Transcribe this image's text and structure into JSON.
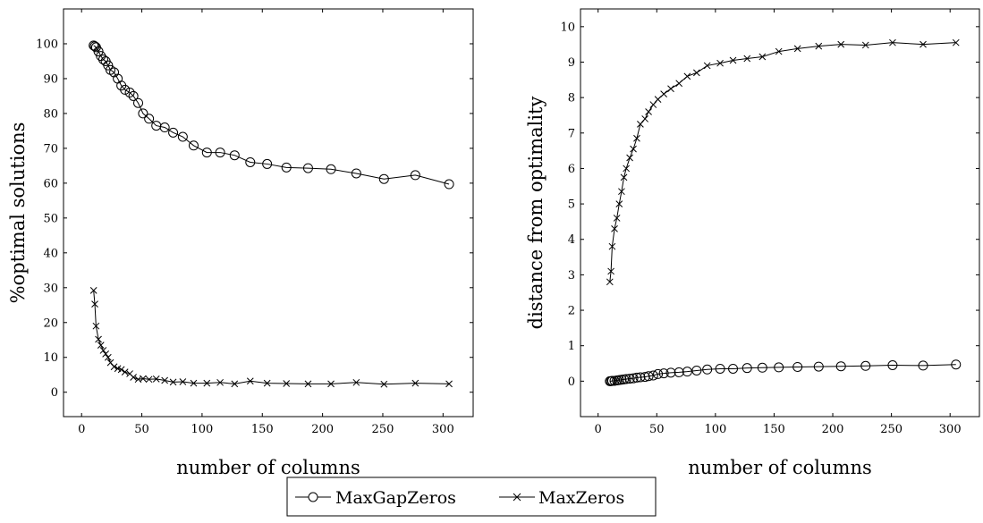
{
  "chart_data": [
    {
      "type": "line",
      "xlabel": "number of columns",
      "ylabel": "%optimal solutions",
      "xlim": [
        -15,
        325
      ],
      "ylim": [
        -7,
        110
      ],
      "xticks": [
        0,
        50,
        100,
        150,
        200,
        250,
        300
      ],
      "yticks": [
        0,
        10,
        20,
        30,
        40,
        50,
        60,
        70,
        80,
        90,
        100
      ],
      "series": [
        {
          "name": "MaxGapZeros",
          "marker": "circle",
          "x": [
            10,
            11,
            12,
            14,
            16,
            18,
            20,
            22,
            24,
            27,
            30,
            33,
            36,
            40,
            43,
            47,
            51,
            56,
            62,
            69,
            76,
            84,
            93,
            104,
            115,
            127,
            140,
            154,
            170,
            188,
            207,
            228,
            251,
            277,
            305
          ],
          "y": [
            99.5,
            99.3,
            99.0,
            97.8,
            96.5,
            95.5,
            95.0,
            93.8,
            92.5,
            91.8,
            90.0,
            88.0,
            86.8,
            86.0,
            85.0,
            83.0,
            80.0,
            78.5,
            76.5,
            76.0,
            74.5,
            73.3,
            70.8,
            68.8,
            68.8,
            68.0,
            66.0,
            65.5,
            64.5,
            64.3,
            64.0,
            62.8,
            61.2,
            62.3,
            59.7
          ]
        },
        {
          "name": "MaxZeros",
          "marker": "x",
          "x": [
            10,
            11,
            12,
            14,
            16,
            18,
            20,
            22,
            24,
            27,
            30,
            33,
            36,
            40,
            43,
            47,
            51,
            56,
            62,
            69,
            76,
            84,
            93,
            104,
            115,
            127,
            140,
            154,
            170,
            188,
            207,
            228,
            251,
            277,
            305
          ],
          "y": [
            29.2,
            25.3,
            19.0,
            15.2,
            13.5,
            12.0,
            11.0,
            10.0,
            8.5,
            7.3,
            6.8,
            6.5,
            5.8,
            5.3,
            4.3,
            3.7,
            3.9,
            3.7,
            3.8,
            3.4,
            2.9,
            3.0,
            2.6,
            2.6,
            2.8,
            2.4,
            3.2,
            2.6,
            2.5,
            2.4,
            2.4,
            2.8,
            2.3,
            2.6,
            2.4
          ]
        }
      ],
      "grid": false
    },
    {
      "type": "line",
      "xlabel": "number of columns",
      "ylabel": "distance from optimality",
      "xlim": [
        -15,
        325
      ],
      "ylim": [
        -1,
        10.5
      ],
      "xticks": [
        0,
        50,
        100,
        150,
        200,
        250,
        300
      ],
      "yticks": [
        0,
        1,
        2,
        3,
        4,
        5,
        6,
        7,
        8,
        9,
        10
      ],
      "series": [
        {
          "name": "MaxGapZeros",
          "marker": "circle",
          "x": [
            10,
            11,
            12,
            14,
            16,
            18,
            20,
            22,
            24,
            27,
            30,
            33,
            36,
            40,
            43,
            47,
            51,
            56,
            62,
            69,
            76,
            84,
            93,
            104,
            115,
            127,
            140,
            154,
            170,
            188,
            207,
            228,
            251,
            277,
            305
          ],
          "y": [
            0.0,
            0.0,
            0.01,
            0.01,
            0.02,
            0.03,
            0.04,
            0.05,
            0.06,
            0.07,
            0.08,
            0.1,
            0.11,
            0.12,
            0.14,
            0.16,
            0.2,
            0.22,
            0.24,
            0.25,
            0.27,
            0.3,
            0.33,
            0.35,
            0.35,
            0.37,
            0.38,
            0.39,
            0.4,
            0.41,
            0.42,
            0.43,
            0.45,
            0.44,
            0.47
          ]
        },
        {
          "name": "MaxZeros",
          "marker": "x",
          "x": [
            10,
            11,
            12,
            14,
            16,
            18,
            20,
            22,
            24,
            27,
            30,
            33,
            36,
            40,
            43,
            47,
            51,
            56,
            62,
            69,
            76,
            84,
            93,
            104,
            115,
            127,
            140,
            154,
            170,
            188,
            207,
            228,
            251,
            277,
            305
          ],
          "y": [
            2.8,
            3.1,
            3.8,
            4.3,
            4.6,
            5.0,
            5.35,
            5.75,
            6.0,
            6.3,
            6.55,
            6.85,
            7.25,
            7.4,
            7.6,
            7.8,
            7.95,
            8.1,
            8.25,
            8.4,
            8.6,
            8.7,
            8.9,
            8.97,
            9.05,
            9.1,
            9.15,
            9.3,
            9.38,
            9.45,
            9.5,
            9.48,
            9.55,
            9.5,
            9.55
          ]
        }
      ],
      "grid": false
    }
  ],
  "legend": {
    "placement": "bottom-center",
    "entries": [
      {
        "label": "MaxGapZeros",
        "marker": "circle"
      },
      {
        "label": "MaxZeros",
        "marker": "x"
      }
    ]
  }
}
